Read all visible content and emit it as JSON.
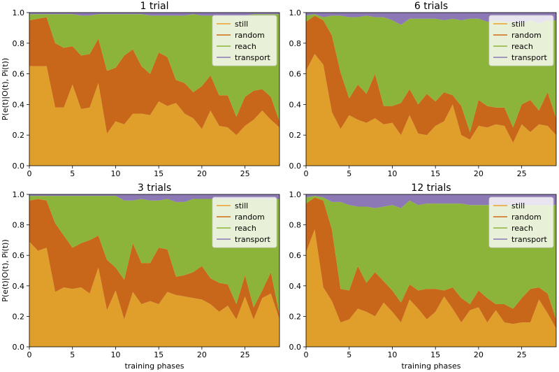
{
  "chart_data": [
    {
      "type": "area",
      "stacked": true,
      "title": "1 trial",
      "xlabel": "",
      "ylabel": "P(e(t)|O(t), Pi(t))",
      "xlim": [
        0,
        29
      ],
      "ylim": [
        0.0,
        1.0
      ],
      "xticks": [
        0,
        5,
        10,
        15,
        20,
        25
      ],
      "yticks": [
        0.0,
        0.2,
        0.4,
        0.6,
        0.8,
        1.0
      ],
      "legend_position": "top-right",
      "x": [
        0,
        1,
        2,
        3,
        4,
        5,
        6,
        7,
        8,
        9,
        10,
        11,
        12,
        13,
        14,
        15,
        16,
        17,
        18,
        19,
        20,
        21,
        22,
        23,
        24,
        25,
        26,
        27,
        28,
        29
      ],
      "series": [
        {
          "name": "still",
          "values": [
            0.65,
            0.65,
            0.65,
            0.38,
            0.38,
            0.53,
            0.37,
            0.38,
            0.54,
            0.21,
            0.29,
            0.27,
            0.34,
            0.34,
            0.33,
            0.42,
            0.39,
            0.41,
            0.34,
            0.31,
            0.24,
            0.36,
            0.26,
            0.25,
            0.2,
            0.26,
            0.3,
            0.36,
            0.3,
            0.25
          ]
        },
        {
          "name": "random",
          "values": [
            0.3,
            0.31,
            0.32,
            0.42,
            0.39,
            0.25,
            0.35,
            0.35,
            0.29,
            0.41,
            0.35,
            0.45,
            0.42,
            0.31,
            0.27,
            0.32,
            0.32,
            0.15,
            0.2,
            0.17,
            0.28,
            0.23,
            0.2,
            0.21,
            0.12,
            0.19,
            0.19,
            0.14,
            0.15,
            0.04
          ]
        },
        {
          "name": "reach",
          "values": [
            0.04,
            0.03,
            0.02,
            0.19,
            0.22,
            0.21,
            0.26,
            0.25,
            0.16,
            0.37,
            0.35,
            0.27,
            0.23,
            0.34,
            0.38,
            0.24,
            0.27,
            0.42,
            0.44,
            0.51,
            0.46,
            0.39,
            0.52,
            0.52,
            0.66,
            0.53,
            0.5,
            0.49,
            0.54,
            0.7
          ]
        },
        {
          "name": "transport",
          "values": [
            0.01,
            0.01,
            0.01,
            0.01,
            0.01,
            0.01,
            0.02,
            0.02,
            0.01,
            0.01,
            0.01,
            0.01,
            0.01,
            0.01,
            0.02,
            0.02,
            0.02,
            0.02,
            0.02,
            0.01,
            0.02,
            0.02,
            0.02,
            0.02,
            0.02,
            0.02,
            0.01,
            0.01,
            0.01,
            0.01
          ]
        }
      ]
    },
    {
      "type": "area",
      "stacked": true,
      "title": "6 trials",
      "xlabel": "",
      "ylabel": "",
      "xlim": [
        0,
        29
      ],
      "ylim": [
        0.0,
        1.0
      ],
      "xticks": [
        0,
        5,
        10,
        15,
        20,
        25
      ],
      "yticks": [
        0.0,
        0.2,
        0.4,
        0.6,
        0.8,
        1.0
      ],
      "legend_position": "top-right",
      "x": [
        0,
        1,
        2,
        3,
        4,
        5,
        6,
        7,
        8,
        9,
        10,
        11,
        12,
        13,
        14,
        15,
        16,
        17,
        18,
        19,
        20,
        21,
        22,
        23,
        24,
        25,
        26,
        27,
        28,
        29
      ],
      "series": [
        {
          "name": "still",
          "values": [
            0.62,
            0.73,
            0.66,
            0.35,
            0.24,
            0.33,
            0.3,
            0.28,
            0.31,
            0.27,
            0.28,
            0.2,
            0.33,
            0.21,
            0.2,
            0.26,
            0.29,
            0.4,
            0.2,
            0.17,
            0.26,
            0.25,
            0.27,
            0.26,
            0.15,
            0.27,
            0.22,
            0.27,
            0.26,
            0.2
          ]
        },
        {
          "name": "random",
          "values": [
            0.32,
            0.25,
            0.29,
            0.5,
            0.37,
            0.11,
            0.23,
            0.19,
            0.29,
            0.12,
            0.11,
            0.21,
            0.17,
            0.19,
            0.27,
            0.16,
            0.19,
            0.06,
            0.19,
            0.05,
            0.17,
            0.14,
            0.11,
            0.12,
            0.1,
            0.13,
            0.21,
            0.09,
            0.22,
            0.11
          ]
        },
        {
          "name": "reach",
          "values": [
            0.04,
            0.01,
            0.02,
            0.13,
            0.37,
            0.53,
            0.44,
            0.51,
            0.37,
            0.58,
            0.56,
            0.51,
            0.46,
            0.56,
            0.49,
            0.54,
            0.47,
            0.5,
            0.56,
            0.74,
            0.53,
            0.55,
            0.57,
            0.56,
            0.69,
            0.53,
            0.52,
            0.57,
            0.47,
            0.64
          ]
        },
        {
          "name": "transport",
          "values": [
            0.02,
            0.01,
            0.03,
            0.02,
            0.02,
            0.03,
            0.03,
            0.02,
            0.03,
            0.03,
            0.05,
            0.08,
            0.04,
            0.04,
            0.04,
            0.04,
            0.05,
            0.04,
            0.05,
            0.04,
            0.04,
            0.06,
            0.05,
            0.06,
            0.06,
            0.07,
            0.05,
            0.07,
            0.05,
            0.05
          ]
        }
      ]
    },
    {
      "type": "area",
      "stacked": true,
      "title": "3 trials",
      "xlabel": "training phases",
      "ylabel": "P(e(t)|O(t), Pi(t))",
      "xlim": [
        0,
        29
      ],
      "ylim": [
        0.0,
        1.0
      ],
      "xticks": [
        0,
        5,
        10,
        15,
        20,
        25
      ],
      "yticks": [
        0.0,
        0.2,
        0.4,
        0.6,
        0.8,
        1.0
      ],
      "legend_position": "top-right",
      "x": [
        0,
        1,
        2,
        3,
        4,
        5,
        6,
        7,
        8,
        9,
        10,
        11,
        12,
        13,
        14,
        15,
        16,
        17,
        18,
        19,
        20,
        21,
        22,
        23,
        24,
        25,
        26,
        27,
        28,
        29
      ],
      "series": [
        {
          "name": "still",
          "values": [
            0.69,
            0.63,
            0.65,
            0.36,
            0.39,
            0.38,
            0.39,
            0.35,
            0.52,
            0.24,
            0.37,
            0.18,
            0.36,
            0.28,
            0.3,
            0.28,
            0.36,
            0.34,
            0.33,
            0.32,
            0.31,
            0.28,
            0.23,
            0.27,
            0.18,
            0.33,
            0.18,
            0.32,
            0.35,
            0.18
          ]
        },
        {
          "name": "random",
          "values": [
            0.27,
            0.34,
            0.31,
            0.45,
            0.34,
            0.27,
            0.29,
            0.35,
            0.21,
            0.33,
            0.15,
            0.26,
            0.32,
            0.27,
            0.25,
            0.37,
            0.28,
            0.12,
            0.14,
            0.17,
            0.22,
            0.17,
            0.19,
            0.14,
            0.1,
            0.14,
            0.08,
            0.05,
            0.14,
            0.03
          ]
        },
        {
          "name": "reach",
          "values": [
            0.03,
            0.02,
            0.03,
            0.18,
            0.26,
            0.34,
            0.31,
            0.29,
            0.26,
            0.42,
            0.47,
            0.52,
            0.28,
            0.42,
            0.41,
            0.31,
            0.33,
            0.49,
            0.48,
            0.48,
            0.44,
            0.52,
            0.55,
            0.56,
            0.69,
            0.5,
            0.71,
            0.6,
            0.48,
            0.76
          ]
        },
        {
          "name": "transport",
          "values": [
            0.01,
            0.01,
            0.01,
            0.01,
            0.01,
            0.01,
            0.01,
            0.01,
            0.01,
            0.01,
            0.01,
            0.04,
            0.04,
            0.03,
            0.04,
            0.04,
            0.03,
            0.05,
            0.05,
            0.03,
            0.03,
            0.03,
            0.03,
            0.03,
            0.03,
            0.03,
            0.03,
            0.03,
            0.03,
            0.03
          ]
        }
      ]
    },
    {
      "type": "area",
      "stacked": true,
      "title": "12 trials",
      "xlabel": "training phases",
      "ylabel": "",
      "xlim": [
        0,
        29
      ],
      "ylim": [
        0.0,
        1.0
      ],
      "xticks": [
        0,
        5,
        10,
        15,
        20,
        25
      ],
      "yticks": [
        0.0,
        0.2,
        0.4,
        0.6,
        0.8,
        1.0
      ],
      "legend_position": "top-right",
      "x": [
        0,
        1,
        2,
        3,
        4,
        5,
        6,
        7,
        8,
        9,
        10,
        11,
        12,
        13,
        14,
        15,
        16,
        17,
        18,
        19,
        20,
        21,
        22,
        23,
        24,
        25,
        26,
        27,
        28,
        29
      ],
      "series": [
        {
          "name": "still",
          "values": [
            0.62,
            0.77,
            0.39,
            0.3,
            0.16,
            0.18,
            0.25,
            0.23,
            0.2,
            0.29,
            0.23,
            0.16,
            0.31,
            0.25,
            0.18,
            0.23,
            0.33,
            0.25,
            0.16,
            0.24,
            0.26,
            0.16,
            0.24,
            0.16,
            0.15,
            0.16,
            0.16,
            0.31,
            0.22,
            0.12
          ]
        },
        {
          "name": "random",
          "values": [
            0.32,
            0.21,
            0.57,
            0.47,
            0.22,
            0.19,
            0.28,
            0.19,
            0.29,
            0.14,
            0.14,
            0.13,
            0.1,
            0.12,
            0.2,
            0.15,
            0.04,
            0.14,
            0.16,
            0.04,
            0.11,
            0.16,
            0.04,
            0.12,
            0.1,
            0.16,
            0.22,
            0.08,
            0.13,
            0.06
          ]
        },
        {
          "name": "reach",
          "values": [
            0.04,
            0.01,
            0.02,
            0.18,
            0.57,
            0.56,
            0.39,
            0.5,
            0.42,
            0.49,
            0.56,
            0.62,
            0.55,
            0.56,
            0.56,
            0.56,
            0.57,
            0.55,
            0.62,
            0.65,
            0.56,
            0.61,
            0.65,
            0.65,
            0.68,
            0.61,
            0.55,
            0.54,
            0.58,
            0.75
          ]
        },
        {
          "name": "transport",
          "values": [
            0.02,
            0.01,
            0.02,
            0.05,
            0.05,
            0.07,
            0.08,
            0.08,
            0.09,
            0.08,
            0.07,
            0.09,
            0.04,
            0.07,
            0.06,
            0.06,
            0.06,
            0.06,
            0.06,
            0.07,
            0.07,
            0.07,
            0.07,
            0.07,
            0.07,
            0.07,
            0.07,
            0.07,
            0.07,
            0.07
          ]
        }
      ]
    }
  ],
  "legend": {
    "labels": [
      "still",
      "random",
      "reach",
      "transport"
    ],
    "colors": [
      "#e8a030",
      "#d06a1a",
      "#8cb43a",
      "#8c78b4"
    ]
  },
  "fill_colors": [
    "#e09e2a",
    "#c8661a",
    "#8cb43a",
    "#8c78b4"
  ]
}
